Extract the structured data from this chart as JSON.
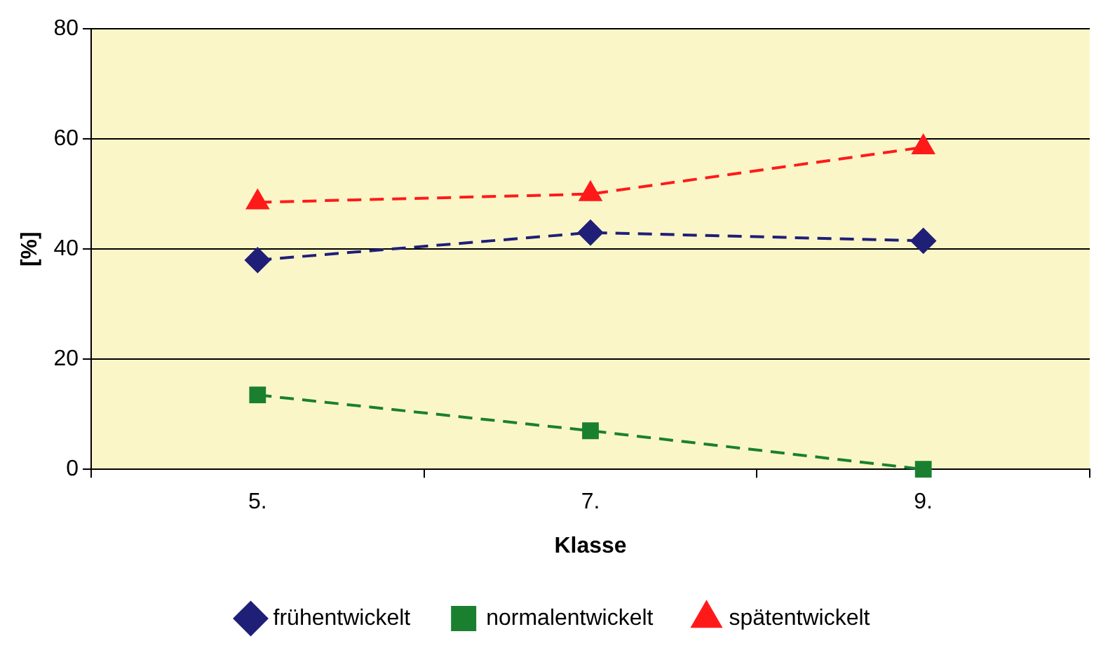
{
  "chart_data": {
    "type": "line",
    "xlabel": "Klasse",
    "ylabel": "[%]",
    "categories": [
      "5.",
      "7.",
      "9."
    ],
    "series": [
      {
        "name": "frühentwickelt",
        "color": "#1f1f78",
        "values": [
          38,
          43,
          41.5
        ],
        "marker": "diamond"
      },
      {
        "name": "normalentwickelt",
        "color": "#1a8030",
        "values": [
          13.5,
          7,
          0
        ],
        "marker": "square"
      },
      {
        "name": "spätentwickelt",
        "color": "#ff1a1a",
        "values": [
          48.5,
          50,
          58.5
        ],
        "marker": "triangle"
      }
    ],
    "ylim": [
      0,
      80
    ],
    "yticks": [
      0,
      20,
      40,
      60,
      80
    ],
    "grid": "y",
    "legend": "bottom",
    "line_style": "dashed"
  }
}
